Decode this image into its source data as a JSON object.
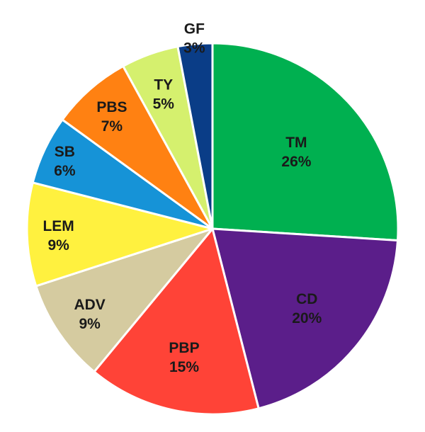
{
  "chart_data": {
    "type": "pie",
    "title": "",
    "start": "12 o'clock",
    "direction": "clockwise",
    "slices": [
      {
        "label": "TM",
        "value": 26,
        "value_label": "26%",
        "color": "#00B050"
      },
      {
        "label": "CD",
        "value": 20,
        "value_label": "20%",
        "color": "#5B1E8A"
      },
      {
        "label": "PBP",
        "value": 15,
        "value_label": "15%",
        "color": "#FF4337"
      },
      {
        "label": "ADV",
        "value": 9,
        "value_label": "9%",
        "color": "#D5CBA0"
      },
      {
        "label": "LEM",
        "value": 9,
        "value_label": "9%",
        "color": "#FFF13F"
      },
      {
        "label": "SB",
        "value": 6,
        "value_label": "6%",
        "color": "#1693D7"
      },
      {
        "label": "PBS",
        "value": 7,
        "value_label": "7%",
        "color": "#FF8112"
      },
      {
        "label": "TY",
        "value": 5,
        "value_label": "5%",
        "color": "#D5F06E"
      },
      {
        "label": "GF",
        "value": 3,
        "value_label": "3%",
        "color": "#0A3D87"
      }
    ]
  }
}
